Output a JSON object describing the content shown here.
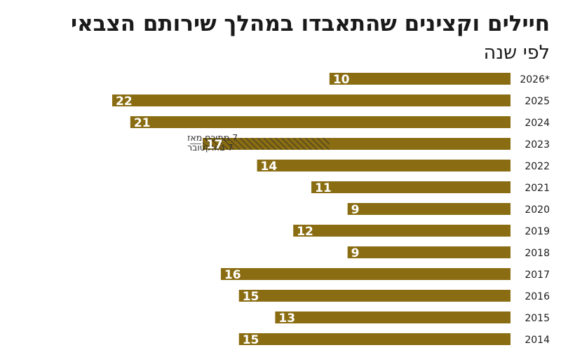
{
  "title": "חיילים וקצינים שהתאבדו במהלך שירותם הצבאי",
  "subtitle": "לפי שנה",
  "colors": {
    "bar": "#8a6d12",
    "hatch": "#4a4020",
    "text": "#1a1a1a"
  },
  "chart_data": {
    "type": "bar",
    "orientation": "horizontal",
    "title": "חיילים וקצינים שהתאבדו במהלך שירותם הצבאי",
    "subtitle": "לפי שנה",
    "categories": [
      "2026*",
      "2025",
      "2024",
      "2023",
      "2022",
      "2021",
      "2020",
      "2019",
      "2018",
      "2017",
      "2016",
      "2015",
      "2014"
    ],
    "values": [
      10,
      22,
      21,
      17,
      14,
      11,
      9,
      12,
      9,
      16,
      15,
      13,
      15
    ],
    "xlim": [
      0,
      22
    ],
    "grid": false,
    "highlight": {
      "category": "2023",
      "hatched_value": 7,
      "annotation": [
        "7 מתוכם מאז",
        "7 באוקטובר"
      ]
    }
  }
}
